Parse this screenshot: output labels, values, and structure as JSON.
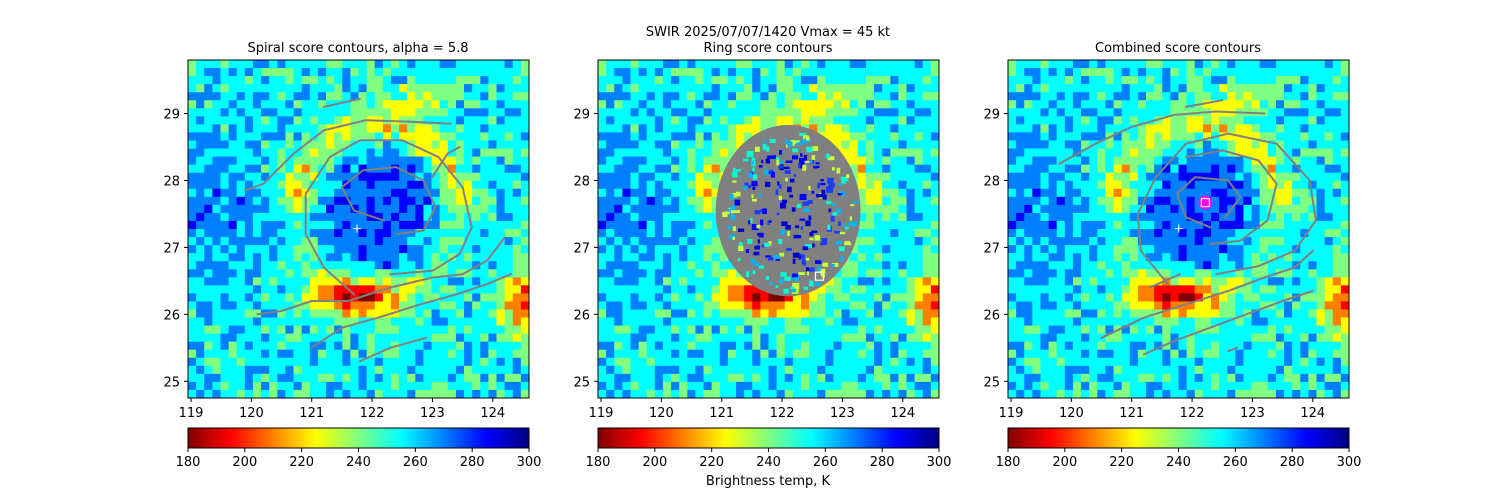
{
  "figure": {
    "suptitle": "SWIR  2025/07/07/1420    Vmax = 45 kt",
    "colorbar_label": "Brightness temp, K"
  },
  "colors": {
    "jet": [
      "#000080",
      "#0000ff",
      "#0080ff",
      "#00ffff",
      "#80ff80",
      "#ffff00",
      "#ff8000",
      "#ff0000",
      "#800000"
    ],
    "contour": "#808080",
    "center_marker": "#ffffff",
    "combined_marker_ring": "#ff00ff"
  },
  "chart_data": [
    {
      "type": "heatmap",
      "title": "Spiral score contours, alpha =  5.8",
      "xlim": [
        118.95,
        124.6
      ],
      "ylim": [
        24.75,
        29.8
      ],
      "xticks": [
        "119",
        "120",
        "121",
        "122",
        "123",
        "124"
      ],
      "yticks": [
        "25",
        "26",
        "27",
        "28",
        "29"
      ],
      "colorbar": {
        "ticks": [
          "180",
          "200",
          "220",
          "240",
          "260",
          "280",
          "300"
        ],
        "range": [
          180,
          300
        ],
        "cmap": "jet_r"
      },
      "contour_lines": [
        [
          [
            121.2,
            29.1
          ],
          [
            121.8,
            29.22
          ]
        ],
        [
          [
            119.9,
            27.85
          ],
          [
            120.2,
            27.95
          ],
          [
            120.7,
            28.4
          ],
          [
            121.2,
            28.75
          ],
          [
            121.9,
            28.9
          ],
          [
            122.6,
            28.88
          ],
          [
            123.3,
            28.85
          ]
        ],
        [
          [
            121.7,
            26.3
          ],
          [
            121.2,
            26.7
          ],
          [
            120.9,
            27.2
          ],
          [
            120.9,
            27.8
          ],
          [
            121.3,
            28.35
          ],
          [
            121.8,
            28.6
          ],
          [
            122.5,
            28.6
          ],
          [
            123.1,
            28.35
          ],
          [
            123.5,
            27.9
          ],
          [
            123.65,
            27.3
          ],
          [
            123.45,
            26.9
          ],
          [
            123.0,
            26.65
          ],
          [
            122.3,
            26.6
          ]
        ],
        [
          [
            122.2,
            27.4
          ],
          [
            121.7,
            27.55
          ],
          [
            121.5,
            27.9
          ],
          [
            121.85,
            28.15
          ],
          [
            122.4,
            28.2
          ],
          [
            122.85,
            28.0
          ],
          [
            123.05,
            27.6
          ],
          [
            122.85,
            27.25
          ],
          [
            122.4,
            27.2
          ]
        ],
        [
          [
            120.1,
            26.0
          ],
          [
            120.5,
            26.05
          ],
          [
            121.0,
            26.2
          ],
          [
            121.6,
            26.2
          ],
          [
            122.3,
            26.4
          ],
          [
            123.0,
            26.55
          ],
          [
            123.5,
            26.6
          ],
          [
            123.9,
            26.8
          ],
          [
            124.2,
            27.15
          ]
        ],
        [
          [
            121.0,
            25.5
          ],
          [
            121.5,
            25.8
          ],
          [
            122.1,
            25.95
          ],
          [
            122.8,
            26.15
          ],
          [
            123.4,
            26.3
          ],
          [
            123.9,
            26.45
          ],
          [
            124.3,
            26.6
          ]
        ],
        [
          [
            121.8,
            25.3
          ],
          [
            122.3,
            25.5
          ],
          [
            122.9,
            25.65
          ]
        ],
        [
          [
            123.0,
            28.05
          ],
          [
            123.25,
            28.4
          ],
          [
            123.45,
            28.5
          ]
        ]
      ],
      "center_marker": {
        "x": 121.75,
        "y": 27.28,
        "symbol": "+"
      }
    },
    {
      "type": "heatmap",
      "title": "Ring score contours",
      "xlim": [
        118.95,
        124.6
      ],
      "ylim": [
        24.75,
        29.8
      ],
      "xticks": [
        "119",
        "120",
        "121",
        "122",
        "123",
        "124"
      ],
      "yticks": [
        "25",
        "26",
        "27",
        "28",
        "29"
      ],
      "colorbar": {
        "ticks": [
          "180",
          "200",
          "220",
          "240",
          "260",
          "280",
          "300"
        ],
        "range": [
          180,
          300
        ],
        "cmap": "jet_r"
      },
      "ring_region": {
        "center_x": 122.1,
        "center_y": 27.55,
        "radius_x": 1.2,
        "radius_y": 1.28
      },
      "square_marker": {
        "x": 122.62,
        "y": 26.57,
        "symbol": "square"
      }
    },
    {
      "type": "heatmap",
      "title": "Combined score contours",
      "xlim": [
        118.95,
        124.6
      ],
      "ylim": [
        24.75,
        29.8
      ],
      "xticks": [
        "119",
        "120",
        "121",
        "122",
        "123",
        "124"
      ],
      "yticks": [
        "25",
        "26",
        "27",
        "28",
        "29"
      ],
      "colorbar": {
        "ticks": [
          "180",
          "200",
          "220",
          "240",
          "260",
          "280",
          "300"
        ],
        "range": [
          180,
          300
        ],
        "cmap": "jet_r"
      },
      "contour_lines": [
        [
          [
            119.8,
            28.25
          ],
          [
            120.4,
            28.55
          ],
          [
            121.0,
            28.8
          ],
          [
            121.7,
            28.98
          ],
          [
            122.4,
            29.03
          ],
          [
            123.2,
            29.0
          ]
        ],
        [
          [
            121.9,
            29.1
          ],
          [
            122.5,
            29.2
          ]
        ],
        [
          [
            121.6,
            26.45
          ],
          [
            121.15,
            26.95
          ],
          [
            121.1,
            27.5
          ],
          [
            121.4,
            28.05
          ],
          [
            121.9,
            28.55
          ],
          [
            122.6,
            28.7
          ],
          [
            123.4,
            28.55
          ],
          [
            123.95,
            28.0
          ],
          [
            124.05,
            27.4
          ],
          [
            123.7,
            26.95
          ],
          [
            123.1,
            26.72
          ],
          [
            122.4,
            26.6
          ]
        ],
        [
          [
            122.3,
            27.3
          ],
          [
            121.9,
            27.45
          ],
          [
            121.75,
            27.8
          ],
          [
            122.05,
            28.05
          ],
          [
            122.6,
            28.0
          ],
          [
            122.8,
            27.75
          ],
          [
            122.55,
            27.45
          ]
        ],
        [
          [
            121.9,
            28.35
          ],
          [
            122.5,
            28.45
          ],
          [
            123.1,
            28.3
          ],
          [
            123.4,
            27.95
          ],
          [
            123.25,
            27.4
          ],
          [
            122.8,
            27.1
          ],
          [
            122.3,
            27.05
          ]
        ],
        [
          [
            120.5,
            25.65
          ],
          [
            121.2,
            25.95
          ],
          [
            121.9,
            26.15
          ],
          [
            122.6,
            26.35
          ],
          [
            123.2,
            26.55
          ],
          [
            123.7,
            26.7
          ],
          [
            124.0,
            26.95
          ]
        ],
        [
          [
            121.2,
            25.4
          ],
          [
            121.7,
            25.6
          ],
          [
            122.3,
            25.8
          ],
          [
            122.9,
            26.0
          ],
          [
            123.5,
            26.2
          ],
          [
            124.0,
            26.35
          ]
        ],
        [
          [
            122.6,
            25.45
          ],
          [
            122.75,
            25.5
          ]
        ],
        [
          [
            121.3,
            26.4
          ],
          [
            121.8,
            26.6
          ]
        ]
      ],
      "center_marker": {
        "x": 121.78,
        "y": 27.28,
        "symbol": "+"
      },
      "square_marker": {
        "x": 122.22,
        "y": 27.67,
        "symbol": "square"
      }
    }
  ]
}
